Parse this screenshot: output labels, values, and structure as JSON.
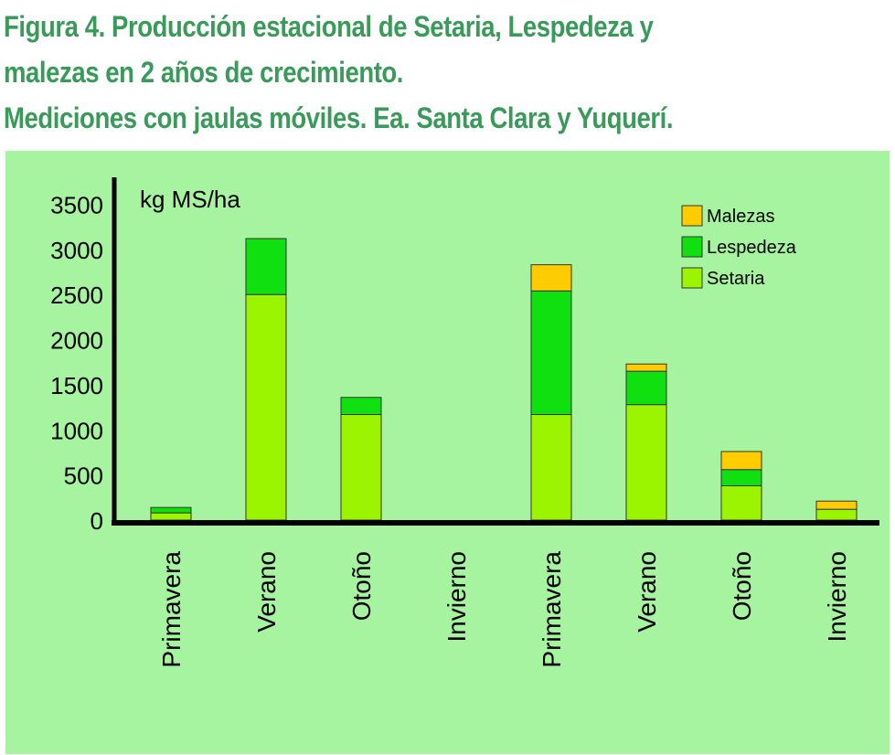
{
  "figure": {
    "title_lines": [
      "Figura 4. Producción estacional de Setaria, Lespedeza y",
      "malezas en 2 años de crecimiento.",
      "Mediciones con jaulas móviles. Ea. Santa Clara y Yuquerí."
    ]
  },
  "colors": {
    "title": "#3a9a5a",
    "background": "#a6f3a0",
    "Setaria": "#9cf500",
    "Lespedeza": "#10e010",
    "Malezas": "#ffcc00"
  },
  "chart_data": {
    "type": "bar",
    "stacked": true,
    "title": "Figura 4. Producción estacional de Setaria, Lespedeza y malezas en 2 años de crecimiento. Mediciones con jaulas móviles. Ea. Santa Clara y Yuquerí.",
    "ylabel": "kg MS/ha",
    "xlabel": "",
    "ylim": [
      0,
      3500
    ],
    "yticks": [
      0,
      500,
      1000,
      1500,
      2000,
      2500,
      3000,
      3500
    ],
    "grid": false,
    "legend_position": "top-right",
    "legend_order": [
      "Malezas",
      "Lespedeza",
      "Setaria"
    ],
    "categories": [
      "Primavera",
      "Verano",
      "Otoño",
      "Invierno",
      "Primavera",
      "Verano",
      "Otoño",
      "Invierno"
    ],
    "series": [
      {
        "name": "Setaria",
        "values": [
          80,
          2500,
          1170,
          0,
          1170,
          1280,
          380,
          120
        ]
      },
      {
        "name": "Lespedeza",
        "values": [
          60,
          620,
          190,
          0,
          1370,
          370,
          180,
          0
        ]
      },
      {
        "name": "Malezas",
        "values": [
          0,
          0,
          0,
          0,
          290,
          80,
          200,
          90
        ]
      }
    ]
  }
}
